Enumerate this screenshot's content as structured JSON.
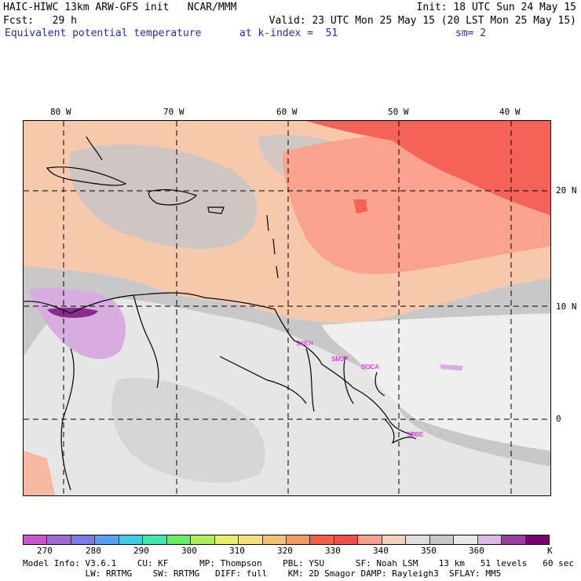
{
  "header": {
    "left1": "HAIC-HIWC 13km ARW-GFS init   NCAR/MMM",
    "left2": "Fcst:   29 h",
    "right1": "Init: 18 UTC Sun 24 May 15",
    "right2": "Valid: 23 UTC Mon 25 May 15 (20 LST Mon 25 May 15)",
    "field": "Equivalent potential temperature",
    "level": "at k-index =  51",
    "smooth": "sm= 2"
  },
  "map": {
    "lon_labels": [
      "80 W",
      "70 W",
      "60 W",
      "50 W",
      "40 W"
    ],
    "lat_labels": [
      "20 N",
      "10 N",
      "0"
    ],
    "stations": [
      "SYEH",
      "SMJP",
      "SOCA",
      "SBBE"
    ],
    "colors": {
      "ocean_warm": "#f6c9ad",
      "ocean_salmon": "#f9a28e",
      "ocean_red": "#f4635a",
      "land_gray": "#c8c8c8",
      "land_light": "#ececec",
      "purple": "#d8aee0",
      "dark_purple": "#8a2c8a",
      "border": "#000000",
      "station": "#e000e0"
    }
  },
  "colorbar": {
    "colors": [
      "#cc55cc",
      "#a06ad4",
      "#7b7be8",
      "#5aa0f0",
      "#40cde0",
      "#3ee8a8",
      "#66ee66",
      "#b0ee55",
      "#e8ee66",
      "#f8e07a",
      "#f6c07a",
      "#f69a62",
      "#f25e48",
      "#f05050",
      "#f6a090",
      "#f4d0b8",
      "#dedede",
      "#c8c8c8",
      "#e8e8e8",
      "#e0b8e8",
      "#9a3ea0",
      "#7a0070"
    ],
    "labels": [
      "270",
      "280",
      "290",
      "300",
      "310",
      "320",
      "330",
      "340",
      "350",
      "360"
    ],
    "unit": "K"
  },
  "footer": {
    "line1": "Model Info: V3.6.1    CU: KF      MP: Thompson    PBL: YSU      SF: Noah LSM    13 km   51 levels   60 sec",
    "line2": "            LW: RRTMG    SW: RRTMG   DIFF: full    KM: 2D Smagor DAMP: Rayleigh3  SFLAY: MM5"
  }
}
